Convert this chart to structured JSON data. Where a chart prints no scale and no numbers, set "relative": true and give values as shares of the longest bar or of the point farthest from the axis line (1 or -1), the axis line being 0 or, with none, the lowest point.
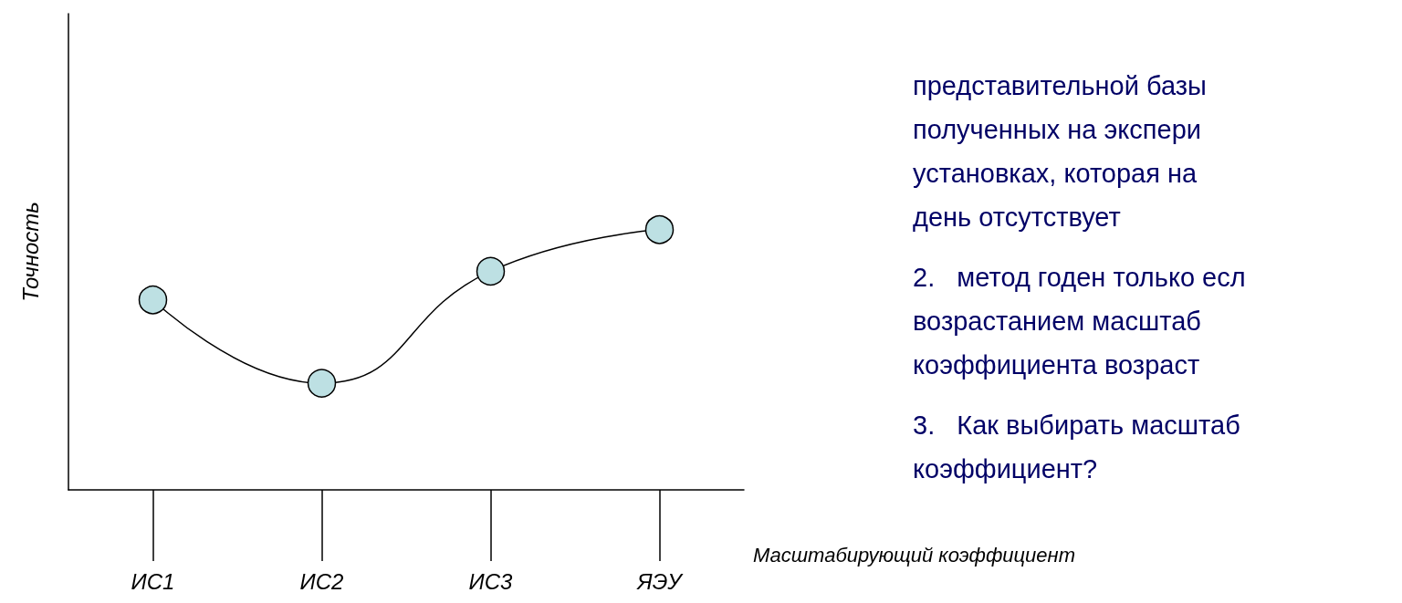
{
  "chart_data": {
    "type": "line",
    "relative": true,
    "ylabel": "Точность",
    "xlabel": "Масштабирующий коэффициент",
    "categories": [
      "ИС1",
      "ИС2",
      "ИС3",
      "ЯЭУ"
    ],
    "series": [
      {
        "color": "#000000",
        "values": [
          0.73,
          0.41,
          0.84,
          1.0
        ]
      }
    ],
    "marker": "circle",
    "line_style": "solid",
    "annotations": [
      "представительной базы",
      "полученных на экспери",
      "установках, которая на",
      "день отсутствует",
      "2.\tметод годен только есл",
      "возрастанием масштаб",
      "коэффициента возраст",
      "3.\tКак выбирать масштаб",
      "коэффициент?"
    ]
  }
}
